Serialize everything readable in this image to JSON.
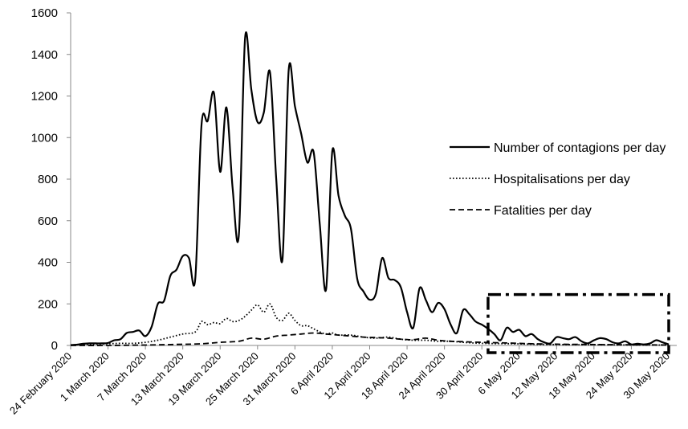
{
  "chart_data": {
    "type": "line",
    "title": "",
    "xlabel": "",
    "ylabel": "",
    "x_start": "2020-02-24",
    "x_end": "2020-05-30",
    "ylim": [
      0,
      1600
    ],
    "yticks": [
      "0",
      "200",
      "400",
      "600",
      "800",
      "1000",
      "1200",
      "1400",
      "1600"
    ],
    "xticks": [
      {
        "date": "2020-02-24",
        "label": "24 February 2020"
      },
      {
        "date": "2020-03-01",
        "label": "1 March 2020"
      },
      {
        "date": "2020-03-07",
        "label": "7 March 2020"
      },
      {
        "date": "2020-03-13",
        "label": "13 March 2020"
      },
      {
        "date": "2020-03-19",
        "label": "19 March 2020"
      },
      {
        "date": "2020-03-25",
        "label": "25 March 2020"
      },
      {
        "date": "2020-03-31",
        "label": "31 March 2020"
      },
      {
        "date": "2020-04-06",
        "label": "6 April 2020"
      },
      {
        "date": "2020-04-12",
        "label": "12 April 2020"
      },
      {
        "date": "2020-04-18",
        "label": "18 April 2020"
      },
      {
        "date": "2020-04-24",
        "label": "24 April 2020"
      },
      {
        "date": "2020-04-30",
        "label": "30 April 2020"
      },
      {
        "date": "2020-05-06",
        "label": "6 May 2020"
      },
      {
        "date": "2020-05-12",
        "label": "12 May 2020"
      },
      {
        "date": "2020-05-18",
        "label": "18 May 2020"
      },
      {
        "date": "2020-05-24",
        "label": "24 May 2020"
      },
      {
        "date": "2020-05-30",
        "label": "30 May 2020"
      }
    ],
    "grid": false,
    "legend_position": "right",
    "series": [
      {
        "name": "Number of contagions per day",
        "style": "solid",
        "color": "#000000",
        "values": [
          [
            "2020-02-24",
            2
          ],
          [
            "2020-02-25",
            4
          ],
          [
            "2020-02-26",
            8
          ],
          [
            "2020-02-27",
            10
          ],
          [
            "2020-02-28",
            10
          ],
          [
            "2020-02-29",
            10
          ],
          [
            "2020-03-01",
            12
          ],
          [
            "2020-03-02",
            25
          ],
          [
            "2020-03-03",
            30
          ],
          [
            "2020-03-04",
            60
          ],
          [
            "2020-03-05",
            65
          ],
          [
            "2020-03-06",
            72
          ],
          [
            "2020-03-07",
            45
          ],
          [
            "2020-03-08",
            90
          ],
          [
            "2020-03-09",
            200
          ],
          [
            "2020-03-10",
            215
          ],
          [
            "2020-03-11",
            335
          ],
          [
            "2020-03-12",
            365
          ],
          [
            "2020-03-13",
            430
          ],
          [
            "2020-03-14",
            420
          ],
          [
            "2020-03-15",
            320
          ],
          [
            "2020-03-16",
            1060
          ],
          [
            "2020-03-17",
            1080
          ],
          [
            "2020-03-18",
            1215
          ],
          [
            "2020-03-19",
            835
          ],
          [
            "2020-03-20",
            1145
          ],
          [
            "2020-03-21",
            755
          ],
          [
            "2020-03-22",
            530
          ],
          [
            "2020-03-23",
            1480
          ],
          [
            "2020-03-24",
            1230
          ],
          [
            "2020-03-25",
            1075
          ],
          [
            "2020-03-26",
            1120
          ],
          [
            "2020-03-27",
            1315
          ],
          [
            "2020-03-28",
            800
          ],
          [
            "2020-03-29",
            415
          ],
          [
            "2020-03-30",
            1325
          ],
          [
            "2020-03-31",
            1150
          ],
          [
            "2020-04-01",
            1020
          ],
          [
            "2020-04-02",
            880
          ],
          [
            "2020-04-03",
            930
          ],
          [
            "2020-04-04",
            580
          ],
          [
            "2020-04-05",
            270
          ],
          [
            "2020-04-06",
            935
          ],
          [
            "2020-04-07",
            720
          ],
          [
            "2020-04-08",
            625
          ],
          [
            "2020-04-09",
            560
          ],
          [
            "2020-04-10",
            320
          ],
          [
            "2020-04-11",
            260
          ],
          [
            "2020-04-12",
            220
          ],
          [
            "2020-04-13",
            250
          ],
          [
            "2020-04-14",
            420
          ],
          [
            "2020-04-15",
            325
          ],
          [
            "2020-04-16",
            315
          ],
          [
            "2020-04-17",
            280
          ],
          [
            "2020-04-18",
            160
          ],
          [
            "2020-04-19",
            85
          ],
          [
            "2020-04-20",
            275
          ],
          [
            "2020-04-21",
            220
          ],
          [
            "2020-04-22",
            160
          ],
          [
            "2020-04-23",
            205
          ],
          [
            "2020-04-24",
            175
          ],
          [
            "2020-04-25",
            100
          ],
          [
            "2020-04-26",
            60
          ],
          [
            "2020-04-27",
            170
          ],
          [
            "2020-04-28",
            150
          ],
          [
            "2020-04-29",
            115
          ],
          [
            "2020-04-30",
            100
          ],
          [
            "2020-05-01",
            80
          ],
          [
            "2020-05-02",
            55
          ],
          [
            "2020-05-03",
            25
          ],
          [
            "2020-05-04",
            85
          ],
          [
            "2020-05-05",
            65
          ],
          [
            "2020-05-06",
            75
          ],
          [
            "2020-05-07",
            45
          ],
          [
            "2020-05-08",
            55
          ],
          [
            "2020-05-09",
            30
          ],
          [
            "2020-05-10",
            15
          ],
          [
            "2020-05-11",
            10
          ],
          [
            "2020-05-12",
            40
          ],
          [
            "2020-05-13",
            35
          ],
          [
            "2020-05-14",
            30
          ],
          [
            "2020-05-15",
            40
          ],
          [
            "2020-05-16",
            20
          ],
          [
            "2020-05-17",
            10
          ],
          [
            "2020-05-18",
            25
          ],
          [
            "2020-05-19",
            35
          ],
          [
            "2020-05-20",
            30
          ],
          [
            "2020-05-21",
            15
          ],
          [
            "2020-05-22",
            10
          ],
          [
            "2020-05-23",
            20
          ],
          [
            "2020-05-24",
            5
          ],
          [
            "2020-05-25",
            8
          ],
          [
            "2020-05-26",
            5
          ],
          [
            "2020-05-27",
            10
          ],
          [
            "2020-05-28",
            25
          ],
          [
            "2020-05-29",
            15
          ],
          [
            "2020-05-30",
            5
          ]
        ]
      },
      {
        "name": "Hospitalisations per day",
        "style": "dotted",
        "color": "#000000",
        "values": [
          [
            "2020-02-24",
            2
          ],
          [
            "2020-02-27",
            5
          ],
          [
            "2020-03-01",
            8
          ],
          [
            "2020-03-03",
            10
          ],
          [
            "2020-03-05",
            10
          ],
          [
            "2020-03-07",
            15
          ],
          [
            "2020-03-09",
            25
          ],
          [
            "2020-03-11",
            40
          ],
          [
            "2020-03-13",
            55
          ],
          [
            "2020-03-15",
            65
          ],
          [
            "2020-03-16",
            115
          ],
          [
            "2020-03-17",
            100
          ],
          [
            "2020-03-18",
            110
          ],
          [
            "2020-03-19",
            105
          ],
          [
            "2020-03-20",
            130
          ],
          [
            "2020-03-21",
            115
          ],
          [
            "2020-03-22",
            120
          ],
          [
            "2020-03-23",
            140
          ],
          [
            "2020-03-24",
            170
          ],
          [
            "2020-03-25",
            195
          ],
          [
            "2020-03-26",
            160
          ],
          [
            "2020-03-27",
            200
          ],
          [
            "2020-03-28",
            135
          ],
          [
            "2020-03-29",
            120
          ],
          [
            "2020-03-30",
            155
          ],
          [
            "2020-03-31",
            120
          ],
          [
            "2020-04-01",
            95
          ],
          [
            "2020-04-02",
            95
          ],
          [
            "2020-04-03",
            80
          ],
          [
            "2020-04-04",
            65
          ],
          [
            "2020-04-05",
            55
          ],
          [
            "2020-04-06",
            60
          ],
          [
            "2020-04-07",
            50
          ],
          [
            "2020-04-09",
            50
          ],
          [
            "2020-04-11",
            40
          ],
          [
            "2020-04-13",
            35
          ],
          [
            "2020-04-15",
            40
          ],
          [
            "2020-04-17",
            30
          ],
          [
            "2020-04-19",
            25
          ],
          [
            "2020-04-21",
            25
          ],
          [
            "2020-04-23",
            20
          ],
          [
            "2020-04-25",
            20
          ],
          [
            "2020-04-27",
            15
          ],
          [
            "2020-04-30",
            10
          ],
          [
            "2020-05-05",
            8
          ],
          [
            "2020-05-10",
            5
          ],
          [
            "2020-05-15",
            4
          ],
          [
            "2020-05-20",
            3
          ],
          [
            "2020-05-25",
            2
          ],
          [
            "2020-05-30",
            2
          ]
        ]
      },
      {
        "name": "Fatalities per day",
        "style": "dashed",
        "color": "#000000",
        "values": [
          [
            "2020-02-24",
            0
          ],
          [
            "2020-03-01",
            0
          ],
          [
            "2020-03-07",
            2
          ],
          [
            "2020-03-12",
            5
          ],
          [
            "2020-03-16",
            8
          ],
          [
            "2020-03-19",
            15
          ],
          [
            "2020-03-22",
            20
          ],
          [
            "2020-03-24",
            35
          ],
          [
            "2020-03-26",
            30
          ],
          [
            "2020-03-28",
            45
          ],
          [
            "2020-03-30",
            50
          ],
          [
            "2020-04-01",
            55
          ],
          [
            "2020-04-03",
            60
          ],
          [
            "2020-04-05",
            55
          ],
          [
            "2020-04-07",
            50
          ],
          [
            "2020-04-09",
            45
          ],
          [
            "2020-04-11",
            40
          ],
          [
            "2020-04-13",
            38
          ],
          [
            "2020-04-15",
            35
          ],
          [
            "2020-04-17",
            30
          ],
          [
            "2020-04-19",
            28
          ],
          [
            "2020-04-21",
            35
          ],
          [
            "2020-04-23",
            25
          ],
          [
            "2020-04-25",
            20
          ],
          [
            "2020-04-27",
            18
          ],
          [
            "2020-04-30",
            15
          ],
          [
            "2020-05-04",
            12
          ],
          [
            "2020-05-08",
            8
          ],
          [
            "2020-05-12",
            6
          ],
          [
            "2020-05-16",
            5
          ],
          [
            "2020-05-20",
            4
          ],
          [
            "2020-05-25",
            3
          ],
          [
            "2020-05-30",
            2
          ]
        ]
      }
    ],
    "annotations": [
      {
        "type": "dash-dot rectangle",
        "x_from": "2020-05-01",
        "x_to": "2020-05-30",
        "y_from": -35,
        "y_to": 245
      }
    ]
  }
}
